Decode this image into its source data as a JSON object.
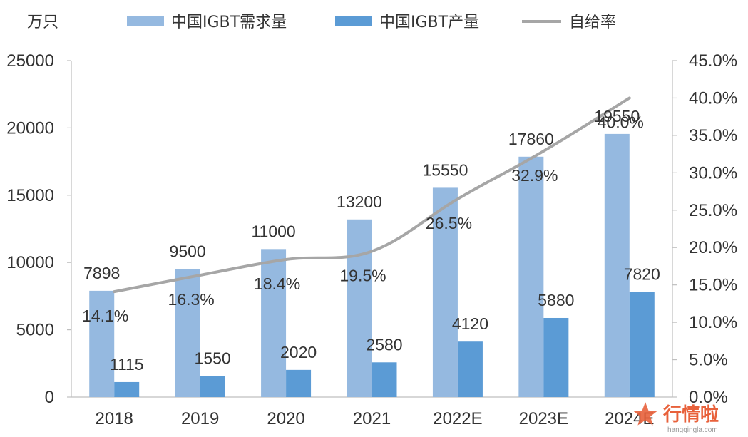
{
  "chart_data": {
    "type": "bar",
    "unit_label": "万只",
    "categories": [
      "2018",
      "2019",
      "2020",
      "2021",
      "2022E",
      "2023E",
      "2024E"
    ],
    "series": [
      {
        "name": "中国IGBT需求量",
        "type": "bar",
        "axis": "left",
        "color": "#95b9e0",
        "values": [
          7898,
          9500,
          11000,
          13200,
          15550,
          17860,
          19550
        ]
      },
      {
        "name": "中国IGBT产量",
        "type": "bar",
        "axis": "left",
        "color": "#5b9bd5",
        "values": [
          1115,
          1550,
          2020,
          2580,
          4120,
          5880,
          7820
        ]
      },
      {
        "name": "自给率",
        "type": "line",
        "axis": "right",
        "color": "#a6a6a6",
        "values": [
          14.1,
          16.3,
          18.4,
          19.5,
          26.5,
          32.9,
          40.0
        ],
        "labels": [
          "14.1%",
          "16.3%",
          "18.4%",
          "19.5%",
          "26.5%",
          "32.9%",
          "40.0%"
        ]
      }
    ],
    "y_left": {
      "min": 0,
      "max": 25000,
      "ticks": [
        "0",
        "5000",
        "10000",
        "15000",
        "20000",
        "25000"
      ]
    },
    "y_right": {
      "min": 0,
      "max": 45,
      "ticks": [
        "0.0%",
        "5.0%",
        "10.0%",
        "15.0%",
        "20.0%",
        "25.0%",
        "30.0%",
        "35.0%",
        "40.0%",
        "45.0%"
      ]
    },
    "legend_position": "top",
    "grid": false
  },
  "watermark": {
    "text": "行情啦",
    "sub": "hangqingla.com"
  }
}
